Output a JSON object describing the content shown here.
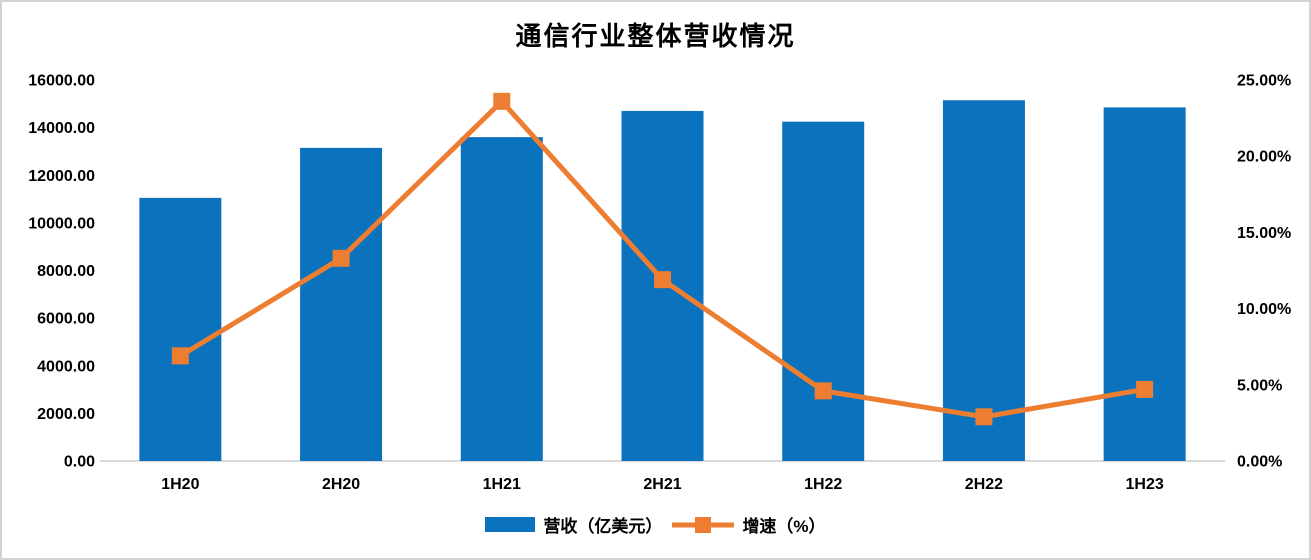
{
  "chart_data": {
    "type": "bar-line-combo",
    "title": "通信行业整体营收情况",
    "categories": [
      "1H20",
      "2H20",
      "1H21",
      "2H21",
      "1H22",
      "2H22",
      "1H23"
    ],
    "series": [
      {
        "name": "营收（亿美元）",
        "type": "bar",
        "axis": "left",
        "color": "#0B72BD",
        "values": [
          11050,
          13150,
          13600,
          14700,
          14250,
          15150,
          14850
        ]
      },
      {
        "name": "增速（%）",
        "type": "line",
        "axis": "right",
        "color": "#ED7D31",
        "values": [
          6.9,
          13.3,
          23.6,
          11.9,
          4.6,
          2.9,
          4.7
        ]
      }
    ],
    "left_axis": {
      "min": 0,
      "max": 16000,
      "tick_labels": [
        "0.00",
        "2000.00",
        "4000.00",
        "6000.00",
        "8000.00",
        "10000.00",
        "12000.00",
        "14000.00",
        "16000.00"
      ]
    },
    "right_axis": {
      "min": 0,
      "max": 25,
      "tick_labels": [
        "0.00%",
        "5.00%",
        "10.00%",
        "15.00%",
        "20.00%",
        "25.00%"
      ]
    },
    "legend_position": "bottom",
    "gridlines": false,
    "axis_line_color": "#D9D9D9"
  }
}
